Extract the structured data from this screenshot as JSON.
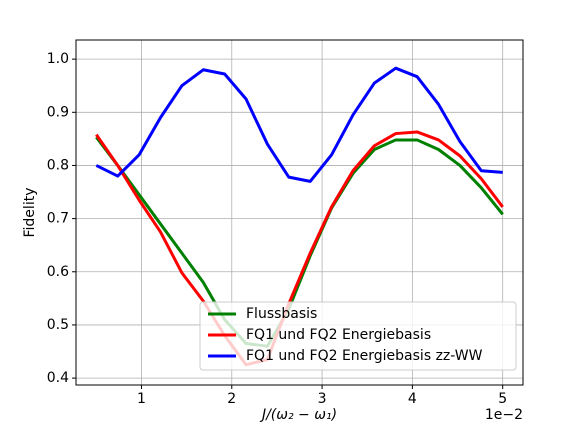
{
  "chart_data": {
    "type": "line",
    "x": [
      0.5,
      0.7368,
      0.9737,
      1.2105,
      1.4474,
      1.6842,
      1.9211,
      2.1579,
      2.3947,
      2.6316,
      2.8684,
      3.1053,
      3.3421,
      3.5789,
      3.8158,
      4.0526,
      4.2895,
      4.5263,
      4.7632,
      5.0
    ],
    "series": [
      {
        "name": "Flussbasis",
        "color": "#008000",
        "values": [
          0.853,
          0.8,
          0.745,
          0.69,
          0.635,
          0.58,
          0.51,
          0.465,
          0.46,
          0.53,
          0.63,
          0.72,
          0.785,
          0.83,
          0.848,
          0.848,
          0.83,
          0.8,
          0.758,
          0.708
        ]
      },
      {
        "name": "FQ1 und FQ2 Energiebasis",
        "color": "#ff0000",
        "values": [
          0.858,
          0.8,
          0.735,
          0.675,
          0.598,
          0.545,
          0.48,
          0.425,
          0.435,
          0.54,
          0.635,
          0.722,
          0.79,
          0.837,
          0.86,
          0.863,
          0.848,
          0.818,
          0.775,
          0.722
        ]
      },
      {
        "name": "FQ1 und FQ2 Energiebasis zz-WW",
        "color": "#0000ff",
        "values": [
          0.8,
          0.78,
          0.82,
          0.89,
          0.95,
          0.98,
          0.972,
          0.925,
          0.84,
          0.778,
          0.77,
          0.82,
          0.895,
          0.955,
          0.983,
          0.967,
          0.915,
          0.845,
          0.79,
          0.787
        ]
      }
    ],
    "xlabel": "J/(ω₂ − ω₁)",
    "x_offset_label": "1e−2",
    "ylabel": "Fidelity",
    "xlim": [
      0.275,
      5.225
    ],
    "xticks": [
      1,
      2,
      3,
      4,
      5
    ],
    "ylim": [
      0.387,
      1.036
    ],
    "yticks": [
      0.4,
      0.5,
      0.6,
      0.7,
      0.8,
      0.9,
      {
        "value": 1,
        "label": "1.0"
      }
    ],
    "grid": true,
    "legend": "lower right"
  }
}
